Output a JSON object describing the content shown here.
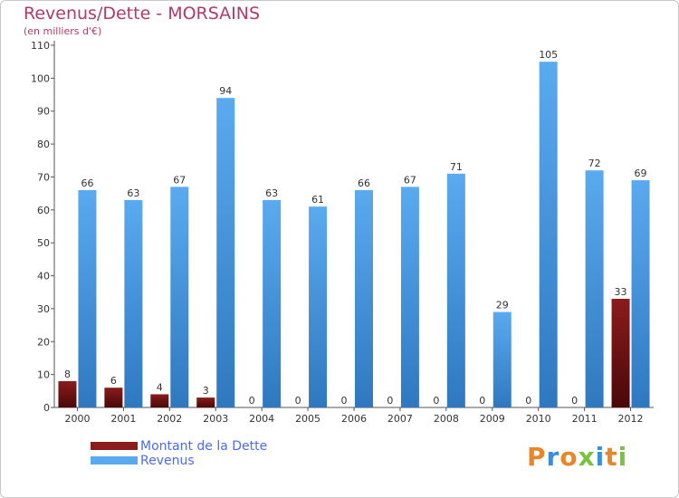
{
  "colors": {
    "title": "#b03a6a",
    "dette_top": "#8a1c1c",
    "dette_bottom": "#4a0808",
    "revenus_top": "#5aaaf0",
    "revenus_bottom": "#2f78c0",
    "legend_text": "#4a6cf0"
  },
  "logo": {
    "text": "Proxiti",
    "colors": [
      "#e8862a",
      "#3b8ed8",
      "#e8862a",
      "#7cc242",
      "#3b8ed8",
      "#e8862a",
      "#7cc242"
    ]
  },
  "chart_data": {
    "type": "bar",
    "title": "Revenus/Dette - MORSAINS",
    "subtitle": "(en milliers d'€)",
    "categories": [
      "2000",
      "2001",
      "2002",
      "2003",
      "2004",
      "2005",
      "2006",
      "2007",
      "2008",
      "2009",
      "2010",
      "2011",
      "2012"
    ],
    "series": [
      {
        "name": "Montant de la Dette",
        "values": [
          8,
          6,
          4,
          3,
          0,
          0,
          0,
          0,
          0,
          0,
          0,
          0,
          33
        ]
      },
      {
        "name": "Revenus",
        "values": [
          66,
          63,
          67,
          94,
          63,
          61,
          66,
          67,
          71,
          29,
          105,
          72,
          69
        ]
      }
    ],
    "ylim": [
      0,
      110
    ],
    "yticks": [
      0,
      10,
      20,
      30,
      40,
      50,
      60,
      70,
      80,
      90,
      100,
      110
    ],
    "grid": false,
    "legend": "bottom-left"
  }
}
